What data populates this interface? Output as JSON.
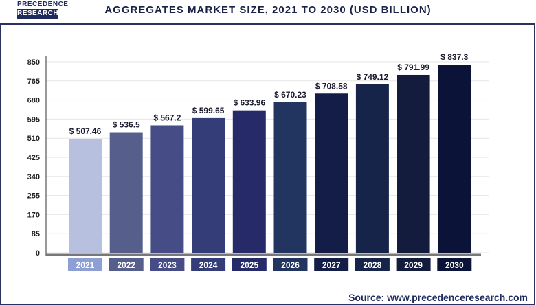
{
  "logo": {
    "line1": "PRECEDENCE",
    "line2": "RESEARCH"
  },
  "title": "AGGREGATES MARKET SIZE, 2021 TO 2030 (USD BILLION)",
  "source": "Source: www.precedenceresearch.com",
  "chart_data": {
    "type": "bar",
    "title": "AGGREGATES MARKET SIZE, 2021 TO 2030 (USD BILLION)",
    "categories": [
      "2021",
      "2022",
      "2023",
      "2024",
      "2025",
      "2026",
      "2027",
      "2028",
      "2029",
      "2030"
    ],
    "values": [
      507.46,
      536.5,
      567.2,
      599.65,
      633.96,
      670.23,
      708.58,
      749.12,
      791.99,
      837.3
    ],
    "data_labels": [
      "$ 507.46",
      "$ 536.5",
      "$ 567.2",
      "$ 599.65",
      "$ 633.96",
      "$ 670.23",
      "$ 708.58",
      "$ 749.12",
      "$ 791.99",
      "$ 837.3"
    ],
    "yticks": [
      0,
      85,
      170,
      255,
      340,
      425,
      510,
      595,
      680,
      765,
      850
    ],
    "ylim": [
      0,
      850
    ],
    "grid": true,
    "bar_colors": [
      "#b8c0e0",
      "#565f8c",
      "#454c86",
      "#353d78",
      "#262a68",
      "#223560",
      "#141c48",
      "#17244a",
      "#131c3c",
      "#0c1338"
    ],
    "label_box_colors": [
      "#8e9fd6",
      "#565f8c",
      "#454c86",
      "#353d78",
      "#262a68",
      "#223560",
      "#141c48",
      "#17244a",
      "#131c3c",
      "#0c1338"
    ]
  }
}
